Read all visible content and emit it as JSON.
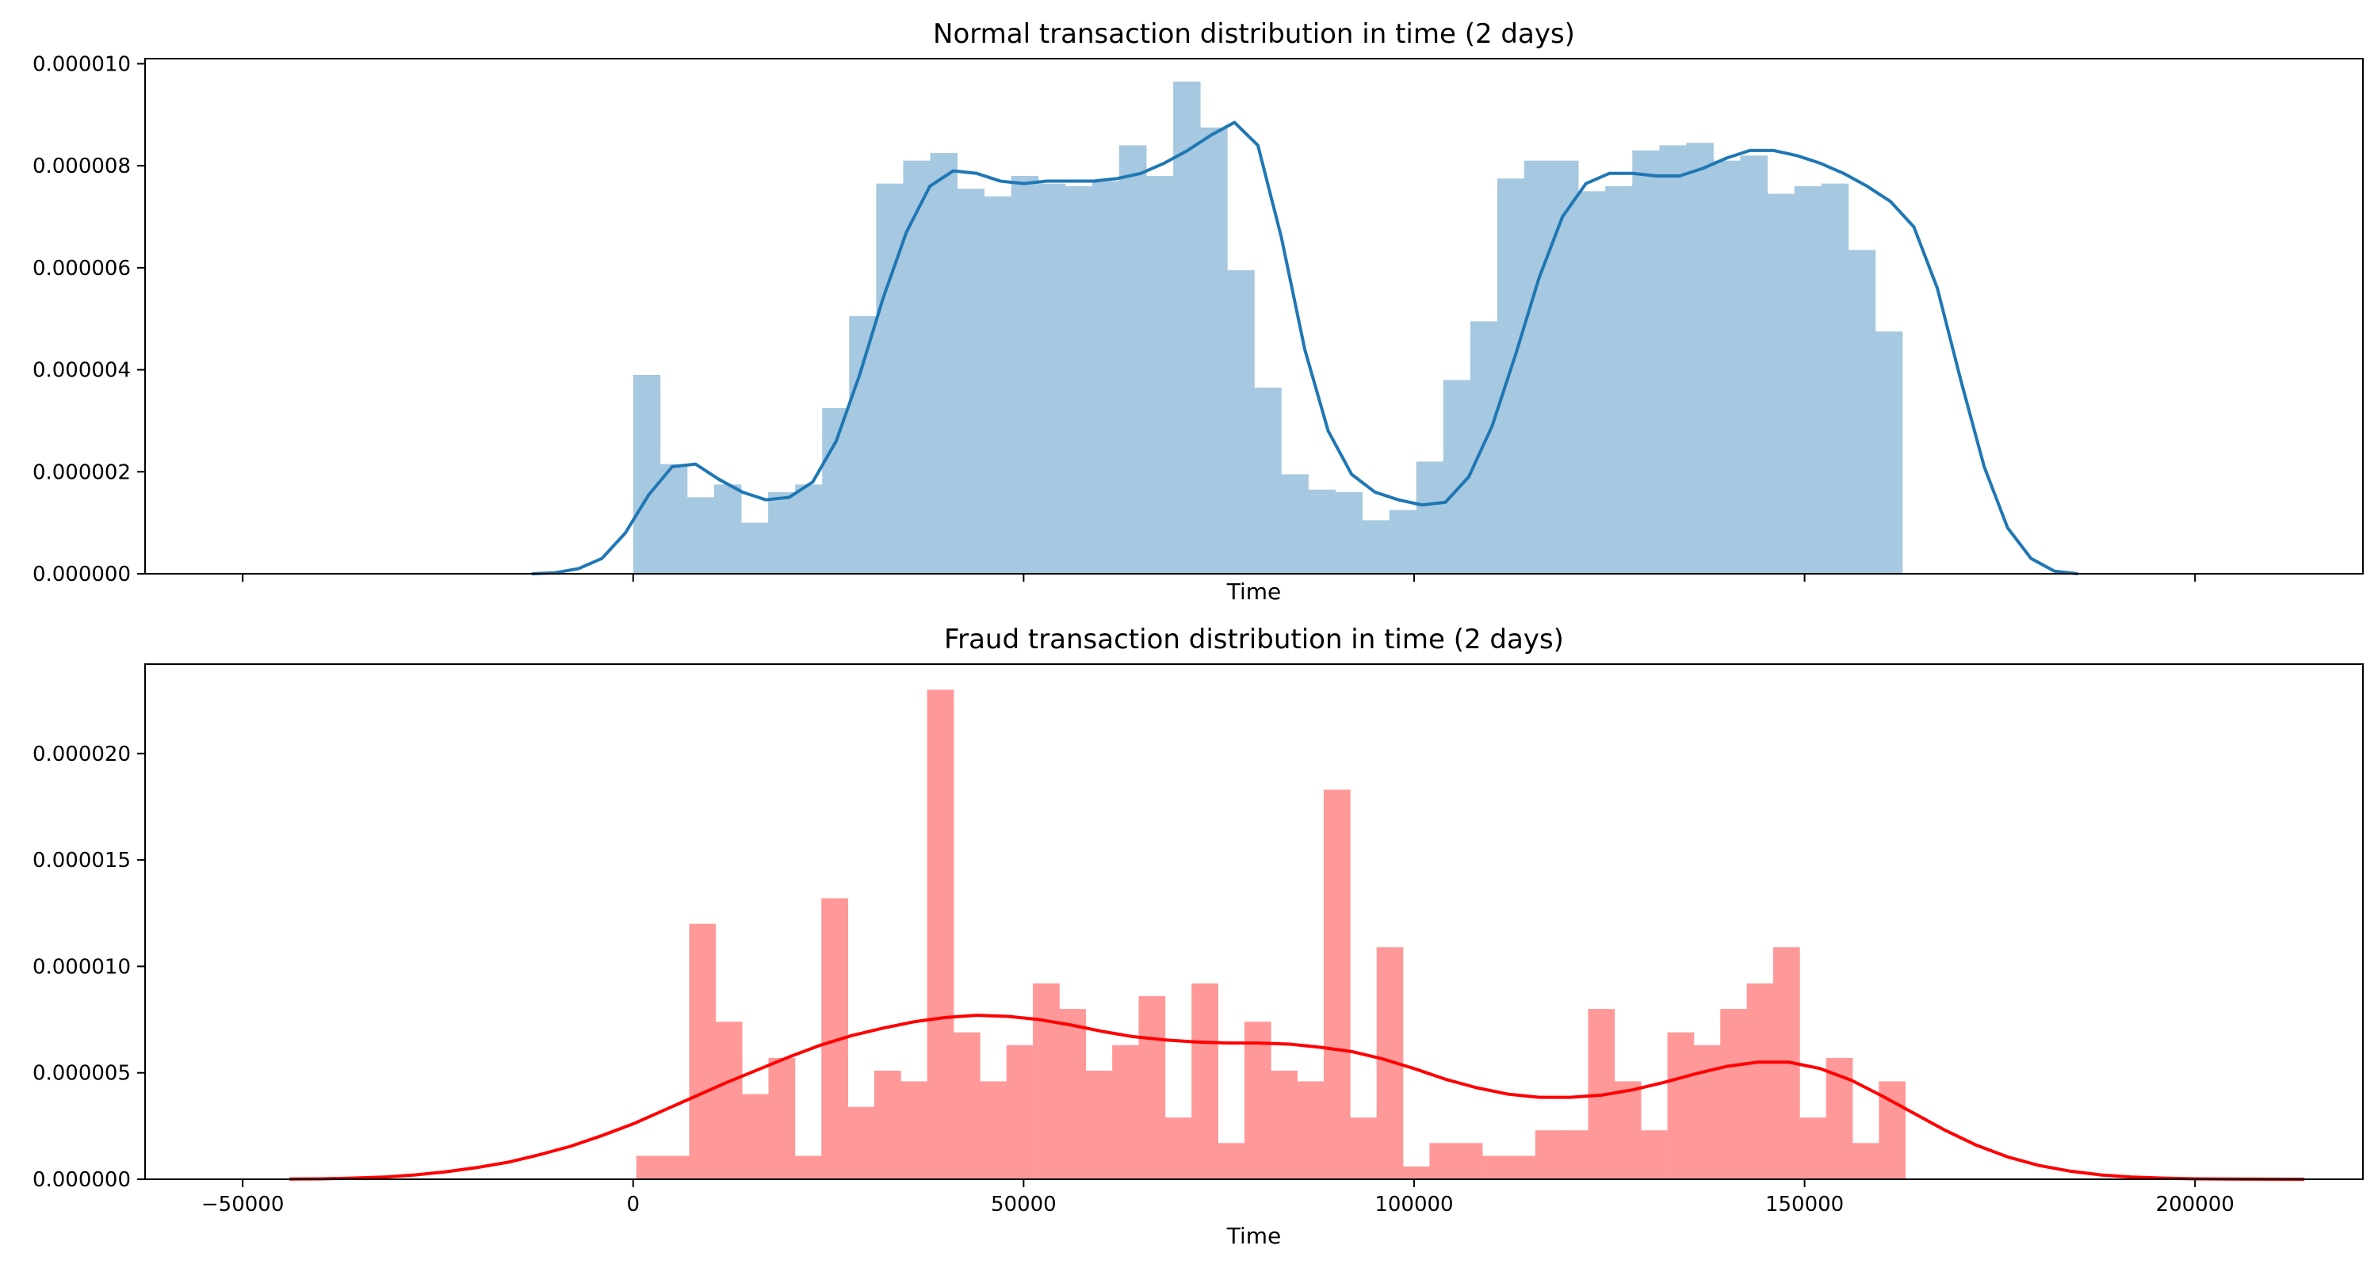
{
  "chart_data": [
    {
      "type": "bar",
      "title": "Normal transaction distribution in time (2 days)",
      "xlabel": "Time",
      "ylabel": "",
      "xlim": [
        -62500,
        221500
      ],
      "ylim": [
        0,
        1.01e-05
      ],
      "show_xticklabels": false,
      "xticks": [
        -50000,
        0,
        50000,
        100000,
        150000,
        200000
      ],
      "xtick_labels": [
        "−50000",
        "0",
        "50000",
        "100000",
        "150000",
        "200000"
      ],
      "yticks": [
        0,
        2e-06,
        4e-06,
        6e-06,
        8e-06,
        1e-05
      ],
      "ytick_labels": [
        "0.000000",
        "0.000002",
        "0.000004",
        "0.000006",
        "0.000008",
        "0.000010"
      ],
      "bar_color": "#a6c8e0",
      "kde_color": "#1f77b4",
      "histogram": {
        "bin_start": 0,
        "bin_width": 3457.9,
        "densities": [
          3.9e-06,
          2.15e-06,
          1.5e-06,
          1.75e-06,
          1e-06,
          1.6e-06,
          1.75e-06,
          3.25e-06,
          5.05e-06,
          7.65e-06,
          8.1e-06,
          8.25e-06,
          7.55e-06,
          7.4e-06,
          7.8e-06,
          7.65e-06,
          7.6e-06,
          7.7e-06,
          8.4e-06,
          7.8e-06,
          9.65e-06,
          8.75e-06,
          5.95e-06,
          3.65e-06,
          1.95e-06,
          1.65e-06,
          1.6e-06,
          1.05e-06,
          1.25e-06,
          2.2e-06,
          3.8e-06,
          4.95e-06,
          7.75e-06,
          8.1e-06,
          8.1e-06,
          7.5e-06,
          7.6e-06,
          8.3e-06,
          8.4e-06,
          8.45e-06,
          8.1e-06,
          8.2e-06,
          7.45e-06,
          7.6e-06,
          7.65e-06,
          6.35e-06,
          4.75e-06
        ]
      },
      "kde": {
        "x": [
          -13000,
          -10000,
          -7000,
          -4000,
          -1000,
          2000,
          5000,
          8000,
          11000,
          14000,
          17000,
          20000,
          23000,
          26000,
          29000,
          32000,
          35000,
          38000,
          41000,
          44000,
          47000,
          50000,
          53000,
          56000,
          59000,
          62000,
          65000,
          68000,
          71000,
          74000,
          77000,
          80000,
          83000,
          86000,
          89000,
          92000,
          95000,
          98000,
          101000,
          104000,
          107000,
          110000,
          113000,
          116000,
          119000,
          122000,
          125000,
          128000,
          131000,
          134000,
          137000,
          140000,
          143000,
          146000,
          149000,
          152000,
          155000,
          158000,
          161000,
          164000,
          167000,
          170000,
          173000,
          176000,
          179000,
          182000,
          185000
        ],
        "y": [
          0.0,
          2e-08,
          1e-07,
          3e-07,
          8e-07,
          1.55e-06,
          2.1e-06,
          2.15e-06,
          1.85e-06,
          1.6e-06,
          1.45e-06,
          1.5e-06,
          1.8e-06,
          2.6e-06,
          3.9e-06,
          5.4e-06,
          6.7e-06,
          7.6e-06,
          7.9e-06,
          7.85e-06,
          7.7e-06,
          7.65e-06,
          7.7e-06,
          7.7e-06,
          7.7e-06,
          7.75e-06,
          7.85e-06,
          8.05e-06,
          8.3e-06,
          8.6e-06,
          8.85e-06,
          8.4e-06,
          6.6e-06,
          4.4e-06,
          2.8e-06,
          1.95e-06,
          1.6e-06,
          1.45e-06,
          1.35e-06,
          1.4e-06,
          1.9e-06,
          2.9e-06,
          4.3e-06,
          5.8e-06,
          7e-06,
          7.65e-06,
          7.85e-06,
          7.85e-06,
          7.8e-06,
          7.8e-06,
          7.95e-06,
          8.15e-06,
          8.3e-06,
          8.3e-06,
          8.2e-06,
          8.05e-06,
          7.85e-06,
          7.6e-06,
          7.3e-06,
          6.8e-06,
          5.6e-06,
          3.8e-06,
          2.1e-06,
          9e-07,
          3e-07,
          5e-08,
          0.0
        ]
      }
    },
    {
      "type": "bar",
      "title": "Fraud transaction distribution in time (2 days)",
      "xlabel": "Time",
      "ylabel": "",
      "xlim": [
        -62500,
        221500
      ],
      "ylim": [
        0,
        2.42e-05
      ],
      "show_xticklabels": true,
      "xticks": [
        -50000,
        0,
        50000,
        100000,
        150000,
        200000
      ],
      "xtick_labels": [
        "−50000",
        "0",
        "50000",
        "100000",
        "150000",
        "200000"
      ],
      "yticks": [
        0,
        5e-06,
        1e-05,
        1.5e-05,
        2e-05
      ],
      "ytick_labels": [
        "0.000000",
        "0.000005",
        "0.000010",
        "0.000015",
        "0.000020"
      ],
      "bar_color": "#ff9999",
      "kde_color": "#ff0000",
      "histogram": {
        "bin_start": 406,
        "bin_width": 3385.4,
        "densities": [
          1.1e-06,
          1.1e-06,
          1.2e-05,
          7.4e-06,
          4e-06,
          5.7e-06,
          1.1e-06,
          1.32e-05,
          3.4e-06,
          5.1e-06,
          4.6e-06,
          2.3e-05,
          6.9e-06,
          4.6e-06,
          6.3e-06,
          9.2e-06,
          8e-06,
          5.1e-06,
          6.3e-06,
          8.6e-06,
          2.9e-06,
          9.2e-06,
          1.7e-06,
          7.4e-06,
          5.1e-06,
          4.6e-06,
          1.83e-05,
          2.9e-06,
          1.09e-05,
          6e-07,
          1.7e-06,
          1.7e-06,
          1.1e-06,
          1.1e-06,
          2.3e-06,
          2.3e-06,
          8e-06,
          4.6e-06,
          2.3e-06,
          6.9e-06,
          6.3e-06,
          8e-06,
          9.2e-06,
          1.09e-05,
          2.9e-06,
          5.7e-06,
          1.7e-06,
          4.6e-06
        ]
      },
      "kde": {
        "x": [
          -44000,
          -40000,
          -36000,
          -32000,
          -28000,
          -24000,
          -20000,
          -16000,
          -12000,
          -8000,
          -4000,
          0,
          4000,
          8000,
          12000,
          16000,
          20000,
          24000,
          28000,
          32000,
          36000,
          40000,
          44000,
          48000,
          52000,
          56000,
          60000,
          64000,
          68000,
          72000,
          76000,
          80000,
          84000,
          88000,
          92000,
          96000,
          100000,
          104000,
          108000,
          112000,
          116000,
          120000,
          124000,
          128000,
          132000,
          136000,
          140000,
          144000,
          148000,
          152000,
          156000,
          160000,
          164000,
          168000,
          172000,
          176000,
          180000,
          184000,
          188000,
          192000,
          196000,
          200000,
          204000,
          208000,
          212000,
          214000
        ],
        "y": [
          1e-08,
          2e-08,
          5e-08,
          1e-07,
          2e-07,
          3.5e-07,
          5.5e-07,
          8e-07,
          1.15e-06,
          1.55e-06,
          2.05e-06,
          2.6e-06,
          3.25e-06,
          3.9e-06,
          4.55e-06,
          5.15e-06,
          5.75e-06,
          6.3e-06,
          6.75e-06,
          7.1e-06,
          7.4e-06,
          7.6e-06,
          7.7e-06,
          7.65e-06,
          7.5e-06,
          7.25e-06,
          6.95e-06,
          6.7e-06,
          6.55e-06,
          6.45e-06,
          6.4e-06,
          6.4e-06,
          6.35e-06,
          6.2e-06,
          6e-06,
          5.65e-06,
          5.2e-06,
          4.7e-06,
          4.3e-06,
          4e-06,
          3.85e-06,
          3.85e-06,
          3.95e-06,
          4.2e-06,
          4.55e-06,
          4.95e-06,
          5.3e-06,
          5.5e-06,
          5.5e-06,
          5.2e-06,
          4.65e-06,
          3.9e-06,
          3.1e-06,
          2.3e-06,
          1.6e-06,
          1.05e-06,
          6.5e-07,
          3.8e-07,
          2e-07,
          1e-07,
          5e-08,
          2e-08,
          1e-08,
          5e-09,
          0.0,
          0.0
        ]
      }
    }
  ]
}
